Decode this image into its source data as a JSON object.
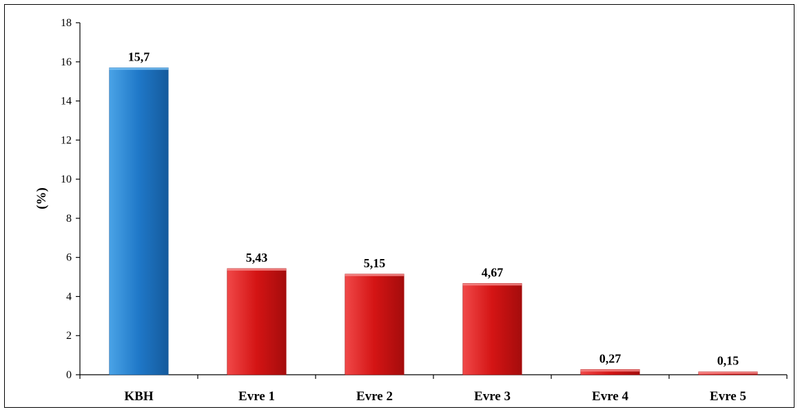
{
  "chart_data": {
    "type": "bar",
    "title": "",
    "xlabel": "",
    "ylabel": "(%)",
    "ylim": [
      0,
      18
    ],
    "yticks": [
      0,
      2,
      4,
      6,
      8,
      10,
      12,
      14,
      16,
      18
    ],
    "grid": false,
    "legend": "none",
    "categories": [
      "KBH",
      "Evre 1",
      "Evre 2",
      "Evre 3",
      "Evre 4",
      "Evre 5"
    ],
    "values": [
      15.7,
      5.43,
      5.15,
      4.67,
      0.27,
      0.15
    ],
    "data_labels": [
      "15,7",
      "5,43",
      "5,15",
      "4,67",
      "0,27",
      "0,15"
    ],
    "bar_colors": [
      "#1f78c8",
      "#d41414",
      "#d41414",
      "#d41414",
      "#d41414",
      "#d41414"
    ]
  }
}
